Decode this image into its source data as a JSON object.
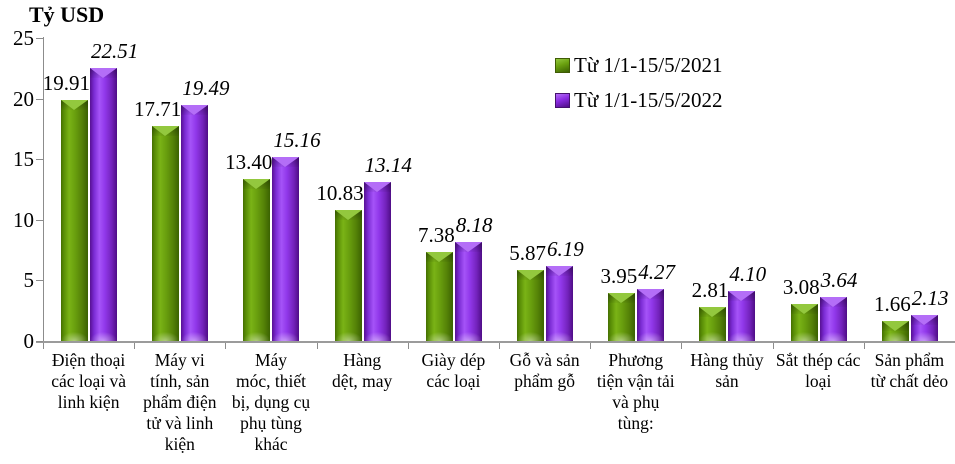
{
  "chart_data": {
    "type": "bar",
    "title": "",
    "ylabel": "Tỷ USD",
    "xlabel": "",
    "ylim": [
      0,
      25
    ],
    "yticks": [
      0,
      5,
      10,
      15,
      20,
      25
    ],
    "grid": false,
    "legend_position": "top-right",
    "value_label_decimals": 2,
    "categories": [
      "Điện thoại\ncác loại và\nlinh kiện",
      "Máy vi\ntính, sản\nphẩm điện\ntử và linh\nkiện",
      "Máy\nmóc, thiết\nbị, dụng cụ\nphụ tùng\nkhác",
      "Hàng\ndệt, may",
      "Giày dép\ncác loại",
      "Gỗ và sản\nphẩm gỗ",
      "Phương\ntiện vận tải\nvà phụ\ntùng:",
      "Hàng thủy\nsản",
      "Sắt thép các\nloại",
      "Sản phẩm\ntừ chất dẻo"
    ],
    "series": [
      {
        "name": "Từ 1/1-15/5/2021",
        "color": "#669900",
        "label_style": "normal",
        "values": [
          19.91,
          17.71,
          13.4,
          10.83,
          7.38,
          5.87,
          3.95,
          2.81,
          3.08,
          1.66
        ]
      },
      {
        "name": "Từ 1/1-15/5/2022",
        "color": "#8a2be2",
        "label_style": "italic",
        "values": [
          22.51,
          19.49,
          15.16,
          13.14,
          8.18,
          6.19,
          4.27,
          4.1,
          3.64,
          2.13
        ]
      }
    ]
  }
}
